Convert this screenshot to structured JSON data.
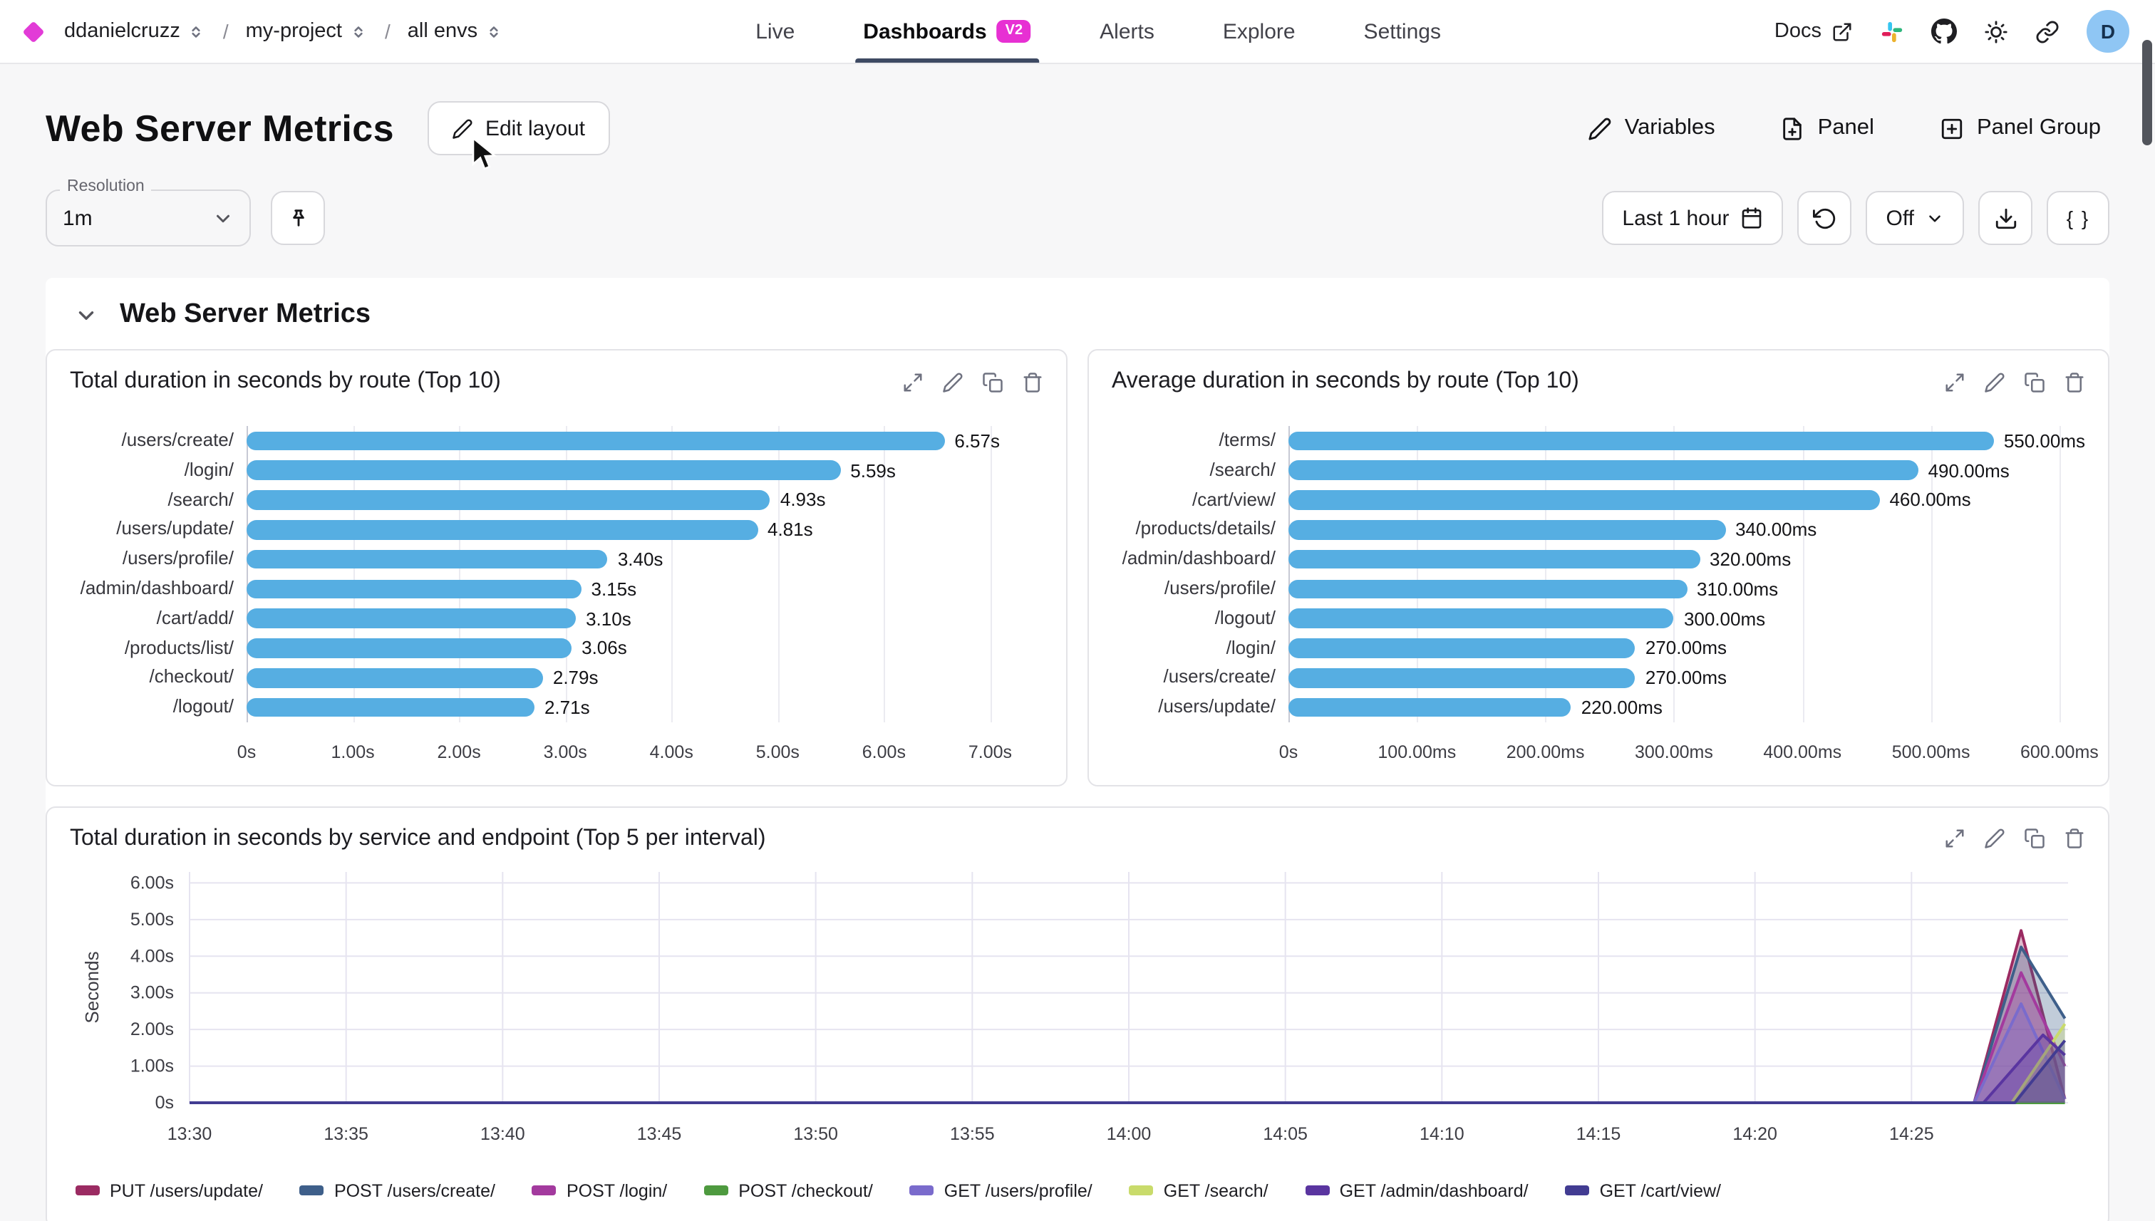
{
  "topbar": {
    "org": "ddanielcruzz",
    "separator": "/",
    "project": "my-project",
    "env": "all envs",
    "tabs": [
      {
        "label": "Live",
        "active": false
      },
      {
        "label": "Dashboards",
        "active": true,
        "badge": "V2"
      },
      {
        "label": "Alerts",
        "active": false
      },
      {
        "label": "Explore",
        "active": false
      },
      {
        "label": "Settings",
        "active": false
      }
    ],
    "docs_label": "Docs",
    "avatar_letter": "D"
  },
  "icons": {
    "brand": "diamond",
    "breadcrumb_selector": "chevron-up-down",
    "docs": "external-link",
    "community": "slack",
    "repository": "github",
    "theme": "sun",
    "share": "link",
    "edit": "pencil",
    "add_panel": "file-plus",
    "add_panel_group": "plus-square",
    "resolution_pin": "pushpin",
    "time_range": "calendar",
    "refresh": "rotate-ccw",
    "export": "download",
    "query": "braces",
    "panel_actions": [
      "expand",
      "edit",
      "copy",
      "delete"
    ],
    "group_collapse": "chevron-down"
  },
  "page": {
    "title": "Web Server Metrics",
    "edit_layout_label": "Edit layout",
    "actions": {
      "variables": "Variables",
      "panel": "Panel",
      "panel_group": "Panel Group"
    },
    "toolbar": {
      "resolution_label": "Resolution",
      "resolution_value": "1m",
      "time_range": "Last 1 hour",
      "auto_refresh": "Off",
      "braces": "{ }"
    }
  },
  "group": {
    "title": "Web Server Metrics"
  },
  "accent_colors": {
    "brand_magenta": "#e730d3",
    "active_tab_underline": "#3e4a63",
    "bar_blue": "#56AEE2",
    "avatar_blue": "#8fc6f4"
  },
  "chart_data": [
    {
      "type": "bar",
      "orientation": "horizontal",
      "title": "Total duration in seconds by route (Top 10)",
      "bar_color": "#56AEE2",
      "categories": [
        "/users/create/",
        "/login/",
        "/search/",
        "/users/update/",
        "/users/profile/",
        "/admin/dashboard/",
        "/cart/add/",
        "/products/list/",
        "/checkout/",
        "/logout/"
      ],
      "values": [
        6.57,
        5.59,
        4.93,
        4.81,
        3.4,
        3.15,
        3.1,
        3.06,
        2.79,
        2.71
      ],
      "value_labels": [
        "6.57s",
        "5.59s",
        "4.93s",
        "4.81s",
        "3.40s",
        "3.15s",
        "3.10s",
        "3.06s",
        "2.79s",
        "2.71s"
      ],
      "xmax": 7.5,
      "xticks": [
        {
          "v": 0,
          "label": "0s"
        },
        {
          "v": 1,
          "label": "1.00s"
        },
        {
          "v": 2,
          "label": "2.00s"
        },
        {
          "v": 3,
          "label": "3.00s"
        },
        {
          "v": 4,
          "label": "4.00s"
        },
        {
          "v": 5,
          "label": "5.00s"
        },
        {
          "v": 6,
          "label": "6.00s"
        },
        {
          "v": 7,
          "label": "7.00s"
        }
      ]
    },
    {
      "type": "bar",
      "orientation": "horizontal",
      "title": "Average duration in seconds by route (Top 10)",
      "bar_color": "#56AEE2",
      "categories": [
        "/terms/",
        "/search/",
        "/cart/view/",
        "/products/details/",
        "/admin/dashboard/",
        "/users/profile/",
        "/logout/",
        "/login/",
        "/users/create/",
        "/users/update/"
      ],
      "values": [
        550,
        490,
        460,
        340,
        320,
        310,
        300,
        270,
        270,
        220
      ],
      "value_labels": [
        "550.00ms",
        "490.00ms",
        "460.00ms",
        "340.00ms",
        "320.00ms",
        "310.00ms",
        "300.00ms",
        "270.00ms",
        "270.00ms",
        "220.00ms"
      ],
      "xmax": 620,
      "xticks": [
        {
          "v": 0,
          "label": "0s"
        },
        {
          "v": 100,
          "label": "100.00ms"
        },
        {
          "v": 200,
          "label": "200.00ms"
        },
        {
          "v": 300,
          "label": "300.00ms"
        },
        {
          "v": 400,
          "label": "400.00ms"
        },
        {
          "v": 500,
          "label": "500.00ms"
        },
        {
          "v": 600,
          "label": "600.00ms"
        }
      ]
    },
    {
      "type": "line",
      "title": "Total duration in seconds by service and endpoint (Top 5 per interval)",
      "ylabel": "Seconds",
      "ymax": 6.3,
      "yticks": [
        {
          "v": 0,
          "label": "0s"
        },
        {
          "v": 1,
          "label": "1.00s"
        },
        {
          "v": 2,
          "label": "2.00s"
        },
        {
          "v": 3,
          "label": "3.00s"
        },
        {
          "v": 4,
          "label": "4.00s"
        },
        {
          "v": 5,
          "label": "5.00s"
        },
        {
          "v": 6,
          "label": "6.00s"
        }
      ],
      "xmax": 60,
      "xticks": [
        {
          "v": 0,
          "label": "13:30"
        },
        {
          "v": 5,
          "label": "13:35"
        },
        {
          "v": 10,
          "label": "13:40"
        },
        {
          "v": 15,
          "label": "13:45"
        },
        {
          "v": 20,
          "label": "13:50"
        },
        {
          "v": 25,
          "label": "13:55"
        },
        {
          "v": 30,
          "label": "14:00"
        },
        {
          "v": 35,
          "label": "14:05"
        },
        {
          "v": 40,
          "label": "14:10"
        },
        {
          "v": 45,
          "label": "14:15"
        },
        {
          "v": 50,
          "label": "14:20"
        },
        {
          "v": 55,
          "label": "14:25"
        }
      ],
      "legend_position": "bottom",
      "grid": true,
      "series": [
        {
          "name": "PUT /users/update/",
          "color": "#9B2B62",
          "points": [
            [
              0,
              0
            ],
            [
              57,
              0
            ],
            [
              58.5,
              4.7
            ],
            [
              59.9,
              0.1
            ]
          ]
        },
        {
          "name": "POST /users/create/",
          "color": "#3E5F8A",
          "points": [
            [
              0,
              0
            ],
            [
              57,
              0
            ],
            [
              58.5,
              4.25
            ],
            [
              59.9,
              2.3
            ]
          ]
        },
        {
          "name": "POST /login/",
          "color": "#A33A9E",
          "points": [
            [
              0,
              0
            ],
            [
              57,
              0
            ],
            [
              58.5,
              3.55
            ],
            [
              59.9,
              1.0
            ]
          ]
        },
        {
          "name": "POST /checkout/",
          "color": "#4E9A3F",
          "points": [
            [
              0,
              0
            ],
            [
              59.9,
              0
            ]
          ]
        },
        {
          "name": "GET /users/profile/",
          "color": "#7A6BCC",
          "points": [
            [
              0,
              0
            ],
            [
              57,
              0
            ],
            [
              58.5,
              2.7
            ],
            [
              59.9,
              0.1
            ]
          ]
        },
        {
          "name": "GET /search/",
          "color": "#C9DB6B",
          "points": [
            [
              0,
              0
            ],
            [
              58.2,
              0
            ],
            [
              59.9,
              2.15
            ]
          ]
        },
        {
          "name": "GET /admin/dashboard/",
          "color": "#5A35A0",
          "points": [
            [
              0,
              0
            ],
            [
              57.3,
              0
            ],
            [
              59.2,
              1.85
            ],
            [
              59.9,
              1.3
            ]
          ]
        },
        {
          "name": "GET /cart/view/",
          "color": "#423C92",
          "points": [
            [
              0,
              0
            ],
            [
              58.3,
              0
            ],
            [
              59.9,
              1.7
            ]
          ]
        }
      ]
    }
  ]
}
